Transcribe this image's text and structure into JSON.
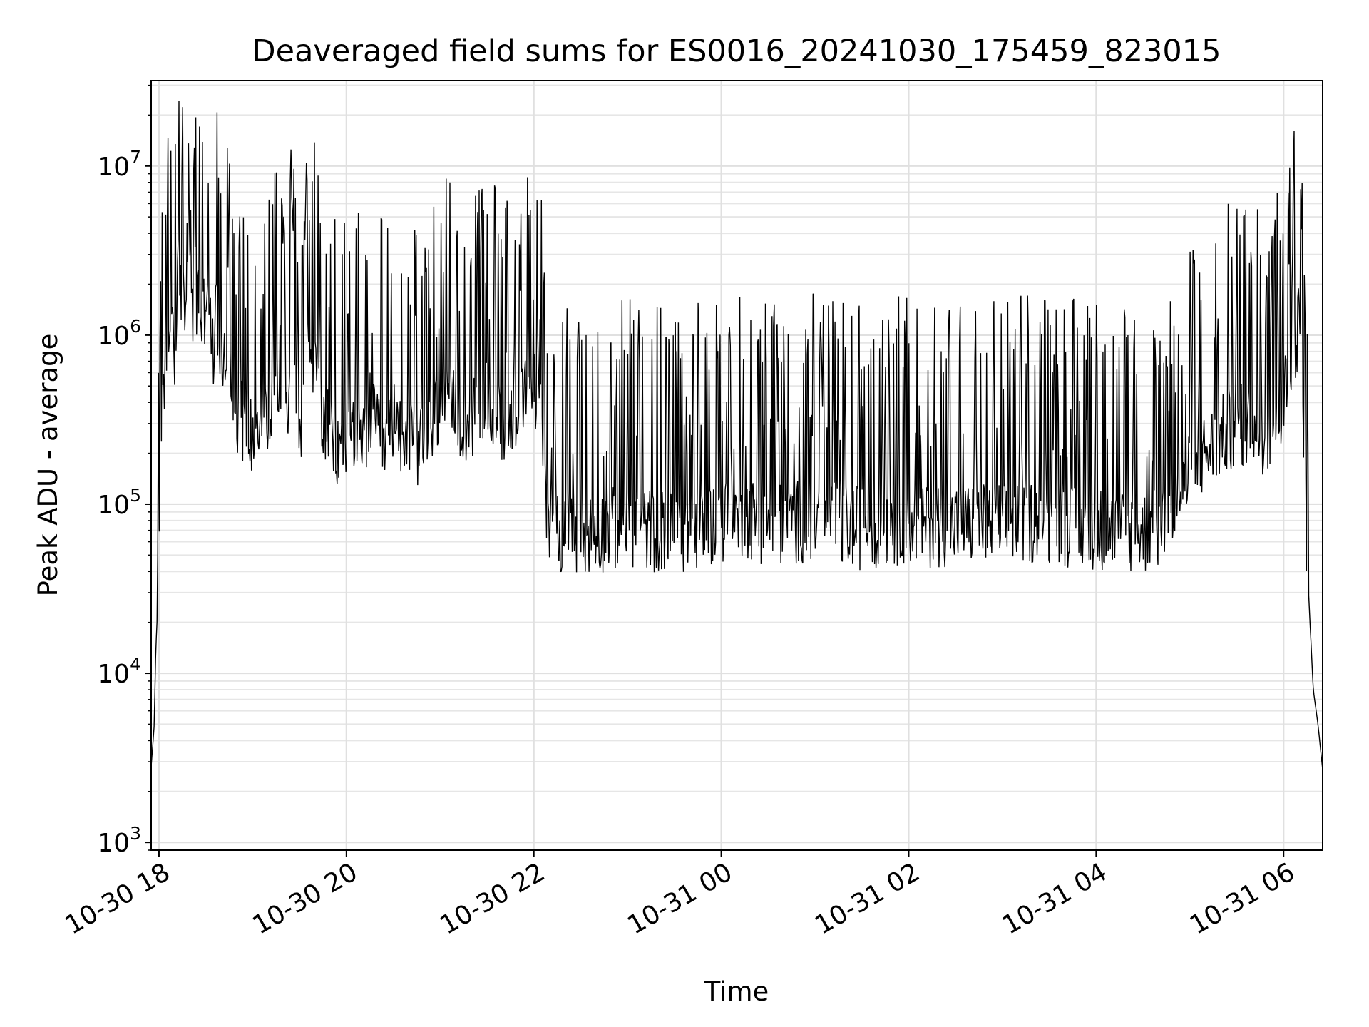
{
  "chart_data": {
    "type": "line",
    "title": "Deaveraged field sums for ES0016_20241030_175459_823015",
    "xlabel": "Time",
    "ylabel": "Peak ADU - average",
    "yscale": "log",
    "ylim": [
      900,
      32000000
    ],
    "xlim": [
      "2024-10-30 17:55",
      "2024-10-31 06:25"
    ],
    "grid": true,
    "x_ticks": [
      "10-30 18",
      "10-30 20",
      "10-30 22",
      "10-31 00",
      "10-31 02",
      "10-31 04",
      "10-31 06"
    ],
    "y_ticks": [
      {
        "base": "10",
        "exp": "3",
        "value": 1000
      },
      {
        "base": "10",
        "exp": "4",
        "value": 10000
      },
      {
        "base": "10",
        "exp": "5",
        "value": 100000
      },
      {
        "base": "10",
        "exp": "6",
        "value": 1000000
      },
      {
        "base": "10",
        "exp": "7",
        "value": 10000000
      }
    ],
    "series": [
      {
        "color": "#000000",
        "x": [
          "2024-10-30 17:55",
          "2024-10-30 17:57",
          "2024-10-30 17:58",
          "2024-10-30 17:59",
          "2024-10-30 18:01",
          "2024-10-30 18:03",
          "2024-10-30 18:05",
          "2024-10-30 18:08",
          "2024-10-30 18:10",
          "2024-10-30 18:13",
          "2024-10-30 18:16",
          "2024-10-30 18:19",
          "2024-10-30 18:22",
          "2024-10-30 18:25",
          "2024-10-30 18:28",
          "2024-10-30 18:31",
          "2024-10-30 18:34",
          "2024-10-30 18:37",
          "2024-10-30 18:40",
          "2024-10-30 18:43",
          "2024-10-30 18:46",
          "2024-10-30 18:50",
          "2024-10-30 18:55",
          "2024-10-30 19:00",
          "2024-10-30 19:05",
          "2024-10-30 19:10",
          "2024-10-30 19:15",
          "2024-10-30 19:20",
          "2024-10-30 19:25",
          "2024-10-30 19:30",
          "2024-10-30 19:35",
          "2024-10-30 19:40",
          "2024-10-30 19:45",
          "2024-10-30 19:50",
          "2024-10-30 19:55",
          "2024-10-30 20:00",
          "2024-10-30 20:05",
          "2024-10-30 20:10",
          "2024-10-30 20:15",
          "2024-10-30 20:20",
          "2024-10-30 20:25",
          "2024-10-30 20:30",
          "2024-10-30 20:40",
          "2024-10-30 20:50",
          "2024-10-30 21:00",
          "2024-10-30 21:10",
          "2024-10-30 21:20",
          "2024-10-30 21:30",
          "2024-10-30 21:40",
          "2024-10-30 21:50",
          "2024-10-30 22:00",
          "2024-10-30 22:05",
          "2024-10-30 22:08",
          "2024-10-30 22:15",
          "2024-10-30 22:30",
          "2024-10-30 22:45",
          "2024-10-30 23:00",
          "2024-10-30 23:15",
          "2024-10-30 23:30",
          "2024-10-30 23:45",
          "2024-10-31 00:00",
          "2024-10-31 00:15",
          "2024-10-31 00:30",
          "2024-10-31 00:45",
          "2024-10-31 01:00",
          "2024-10-31 01:15",
          "2024-10-31 01:30",
          "2024-10-31 01:45",
          "2024-10-31 02:00",
          "2024-10-31 02:15",
          "2024-10-31 02:30",
          "2024-10-31 02:45",
          "2024-10-31 03:00",
          "2024-10-31 03:15",
          "2024-10-31 03:30",
          "2024-10-31 03:45",
          "2024-10-31 04:00",
          "2024-10-31 04:15",
          "2024-10-31 04:30",
          "2024-10-31 04:45",
          "2024-10-31 05:00",
          "2024-10-31 05:10",
          "2024-10-31 05:20",
          "2024-10-31 05:30",
          "2024-10-31 05:40",
          "2024-10-31 05:50",
          "2024-10-31 06:00",
          "2024-10-31 06:05",
          "2024-10-31 06:10",
          "2024-10-31 06:13",
          "2024-10-31 06:16",
          "2024-10-31 06:19",
          "2024-10-31 06:22",
          "2024-10-31 06:25"
        ],
        "y": [
          2800,
          5000,
          15000,
          30000,
          150000,
          400000,
          700000,
          1500000,
          900000,
          3000000,
          1200000,
          4000000,
          800000,
          1800000,
          1100000,
          2500000,
          700000,
          1400000,
          600000,
          900000,
          500000,
          350000,
          300000,
          250000,
          400000,
          300000,
          500000,
          350000,
          600000,
          250000,
          900000,
          700000,
          300000,
          250000,
          200000,
          250000,
          300000,
          200000,
          350000,
          250000,
          220000,
          300000,
          250000,
          200000,
          400000,
          350000,
          300000,
          400000,
          300000,
          350000,
          500000,
          300000,
          90000,
          70000,
          65000,
          70000,
          75000,
          70000,
          68000,
          72000,
          80000,
          85000,
          75000,
          78000,
          80000,
          75000,
          72000,
          76000,
          78000,
          74000,
          76000,
          75000,
          78000,
          80000,
          76000,
          74000,
          72000,
          70000,
          68000,
          70000,
          150000,
          200000,
          250000,
          300000,
          280000,
          260000,
          400000,
          700000,
          1200000,
          200000,
          30000,
          8000,
          5000,
          2700
        ]
      }
    ]
  }
}
